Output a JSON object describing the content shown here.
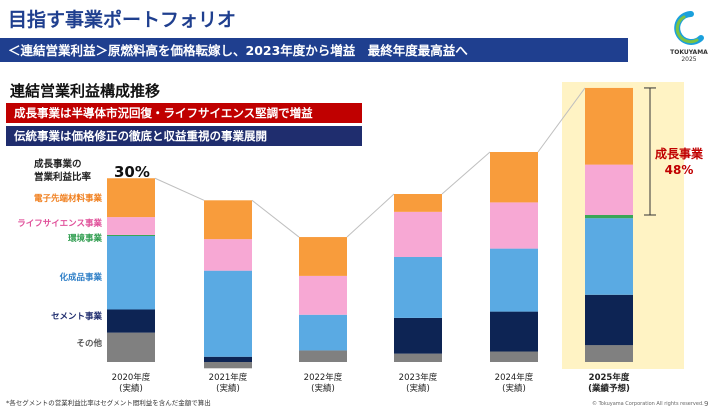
{
  "header": {
    "title": "目指す事業ポートフォリオ",
    "subtitle": "＜連結営業利益＞原燃料高を価格転嫁し、2023年度から増益　最終年度最高益へ",
    "logo_text": "TOKUYAMA",
    "logo_year": "2025"
  },
  "section_title": "連結営業利益構成推移",
  "banners": {
    "growth": "成長事業は半導体市況回復・ライフサイエンス堅調で増益",
    "traditional": "伝統事業は価格修正の徹底と収益重視の事業展開"
  },
  "ratio_label": "成長事業の\n営業利益比率",
  "ratio_2020": "30%",
  "ratio_2025": {
    "label": "成長事業",
    "value": "48%"
  },
  "footnote": "*各セグメントの営業利益比率はセグメント間利益を含んだ金額で算出",
  "copyright": "© Tokuyama Corporation All rights reserved.",
  "page_number": "9",
  "colors": {
    "title_blue": "#1f3f8f",
    "subtitle_bar": "#1f3f8f",
    "growth_banner": "#c00000",
    "traditional_banner": "#1f2d6e",
    "highlight_bg": "#fff3c4",
    "ratio_red": "#c00000"
  },
  "chart_data": {
    "type": "bar",
    "stacked": true,
    "categories": [
      "2020年度\n(実績)",
      "2021年度\n(実績)",
      "2022年度\n(実績)",
      "2023年度\n(実績)",
      "2024年度\n(実績)",
      "2025年度\n(業績予想)"
    ],
    "highlight_category": 5,
    "series": [
      {
        "name": "その他",
        "color": "#808080",
        "values": [
          28,
          -6,
          11,
          8,
          10,
          16
        ]
      },
      {
        "name": "セメント事業",
        "color": "#0d2454",
        "values": [
          22,
          5,
          0,
          34,
          38,
          48
        ]
      },
      {
        "name": "化成品事業",
        "color": "#5aaae3",
        "values": [
          70,
          82,
          34,
          58,
          60,
          73
        ]
      },
      {
        "name": "環境事業",
        "color": "#3aa657",
        "values": [
          1,
          0,
          0,
          0,
          0,
          3
        ]
      },
      {
        "name": "ライフサイエンス事業",
        "color": "#f7a8d4",
        "values": [
          17,
          30,
          37,
          43,
          44,
          48
        ]
      },
      {
        "name": "電子先端材料事業",
        "color": "#f89c3c",
        "values": [
          37,
          37,
          37,
          17,
          48,
          73
        ]
      }
    ]
  }
}
